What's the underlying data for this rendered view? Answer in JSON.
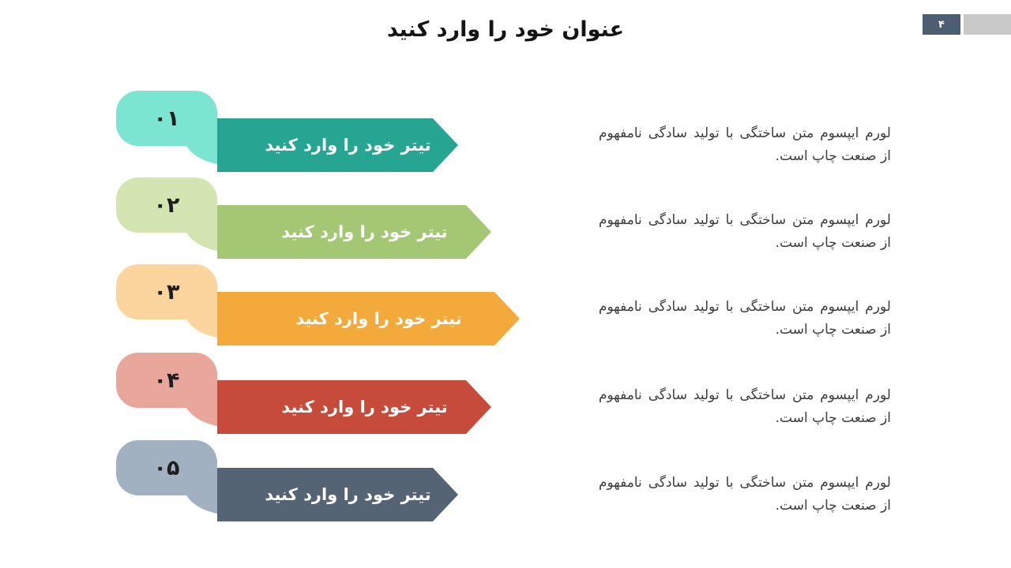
{
  "slide": {
    "title": "عنوان خود را وارد کنید",
    "page": {
      "number": "۴",
      "box_color": "#4D5E72",
      "tab_color": "#C9C9C9"
    }
  },
  "items": [
    {
      "number": "۰۱",
      "title": "تیتر خود را وارد کنید",
      "description": "لورم ایپسوم متن ساختگی با تولید سادگی نامفهوم از صنعت چاپ است.",
      "badge_color": "#7CE5D2",
      "banner_color": "#27A593"
    },
    {
      "number": "۰۲",
      "title": "تیتر خود را وارد کنید",
      "description": "لورم ایپسوم متن ساختگی با تولید سادگی نامفهوم از صنعت چاپ است.",
      "badge_color": "#D3E5B0",
      "banner_color": "#A3C773"
    },
    {
      "number": "۰۳",
      "title": "تیتر خود را وارد کنید",
      "description": "لورم ایپسوم متن ساختگی با تولید سادگی نامفهوم از صنعت چاپ است.",
      "badge_color": "#FBD59D",
      "banner_color": "#F4A93B"
    },
    {
      "number": "۰۴",
      "title": "تیتر خود را وارد کنید",
      "description": "لورم ایپسوم متن ساختگی با تولید سادگی نامفهوم از صنعت چاپ است.",
      "badge_color": "#E9A69A",
      "banner_color": "#C74B3A"
    },
    {
      "number": "۰۵",
      "title": "تیتر خود را وارد کنید",
      "description": "لورم ایپسوم متن ساختگی با تولید سادگی نامفهوم از صنعت چاپ است.",
      "badge_color": "#A2B1C2",
      "banner_color": "#556474"
    }
  ]
}
